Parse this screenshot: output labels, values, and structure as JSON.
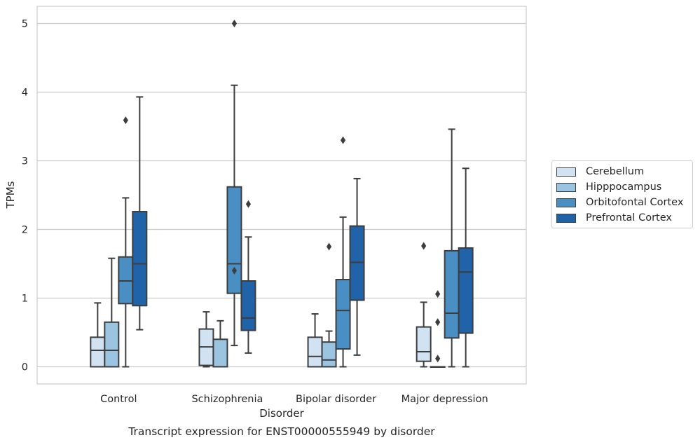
{
  "chart_data": {
    "type": "box",
    "title": "Transcript expression for ENST00000555949 by disorder",
    "xlabel": "Disorder",
    "ylabel": "TPMs",
    "ylim": [
      -0.25,
      5.25
    ],
    "yticks": [
      "0",
      "1",
      "2",
      "3",
      "4",
      "5"
    ],
    "categories": [
      "Control",
      "Schizophrenia",
      "Bipolar disorder",
      "Major depression"
    ],
    "grid": "horizontal",
    "legend_position": "right",
    "series": [
      {
        "name": "Cerebellum",
        "color": "#d1e2f2",
        "boxes": [
          {
            "whislo": 0.0,
            "q1": 0.0,
            "med": 0.24,
            "q3": 0.43,
            "whishi": 0.93,
            "fliers": []
          },
          {
            "whislo": 0.0,
            "q1": 0.02,
            "med": 0.29,
            "q3": 0.55,
            "whishi": 0.8,
            "fliers": []
          },
          {
            "whislo": 0.0,
            "q1": 0.0,
            "med": 0.15,
            "q3": 0.43,
            "whishi": 0.77,
            "fliers": []
          },
          {
            "whislo": 0.0,
            "q1": 0.08,
            "med": 0.22,
            "q3": 0.58,
            "whishi": 0.94,
            "fliers": [
              1.76
            ]
          }
        ]
      },
      {
        "name": "Hipppocampus",
        "color": "#9ac4e0",
        "boxes": [
          {
            "whislo": 0.0,
            "q1": 0.0,
            "med": 0.24,
            "q3": 0.65,
            "whishi": 1.58,
            "fliers": []
          },
          {
            "whislo": 0.0,
            "q1": 0.0,
            "med": 0.0,
            "q3": 0.4,
            "whishi": 0.67,
            "fliers": []
          },
          {
            "whislo": 0.0,
            "q1": 0.0,
            "med": 0.1,
            "q3": 0.36,
            "whishi": 0.52,
            "fliers": [
              1.75
            ]
          },
          {
            "whislo": 0.0,
            "q1": 0.0,
            "med": 0.0,
            "q3": 0.0,
            "whishi": 0.0,
            "fliers": [
              1.06,
              0.65,
              0.12
            ]
          }
        ]
      },
      {
        "name": "Orbitofontal Cortex",
        "color": "#4a8fc4",
        "boxes": [
          {
            "whislo": 0.0,
            "q1": 0.92,
            "med": 1.25,
            "q3": 1.6,
            "whishi": 2.46,
            "fliers": [
              3.59
            ]
          },
          {
            "whislo": 0.31,
            "q1": 1.07,
            "med": 1.5,
            "q3": 2.62,
            "whishi": 4.1,
            "fliers": [
              1.4,
              5.0
            ]
          },
          {
            "whislo": 0.0,
            "q1": 0.26,
            "med": 0.82,
            "q3": 1.27,
            "whishi": 2.18,
            "fliers": [
              3.3
            ]
          },
          {
            "whislo": 0.0,
            "q1": 0.42,
            "med": 0.78,
            "q3": 1.69,
            "whishi": 3.46,
            "fliers": []
          }
        ]
      },
      {
        "name": "Prefrontal Cortex",
        "color": "#2163a8",
        "boxes": [
          {
            "whislo": 0.54,
            "q1": 0.89,
            "med": 1.5,
            "q3": 2.26,
            "whishi": 3.93,
            "fliers": []
          },
          {
            "whislo": 0.2,
            "q1": 0.53,
            "med": 0.71,
            "q3": 1.25,
            "whishi": 1.89,
            "fliers": [
              2.37
            ]
          },
          {
            "whislo": 0.17,
            "q1": 0.97,
            "med": 1.52,
            "q3": 2.05,
            "whishi": 2.74,
            "fliers": []
          },
          {
            "whislo": 0.0,
            "q1": 0.49,
            "med": 1.38,
            "q3": 1.73,
            "whishi": 2.89,
            "fliers": []
          }
        ]
      }
    ]
  }
}
